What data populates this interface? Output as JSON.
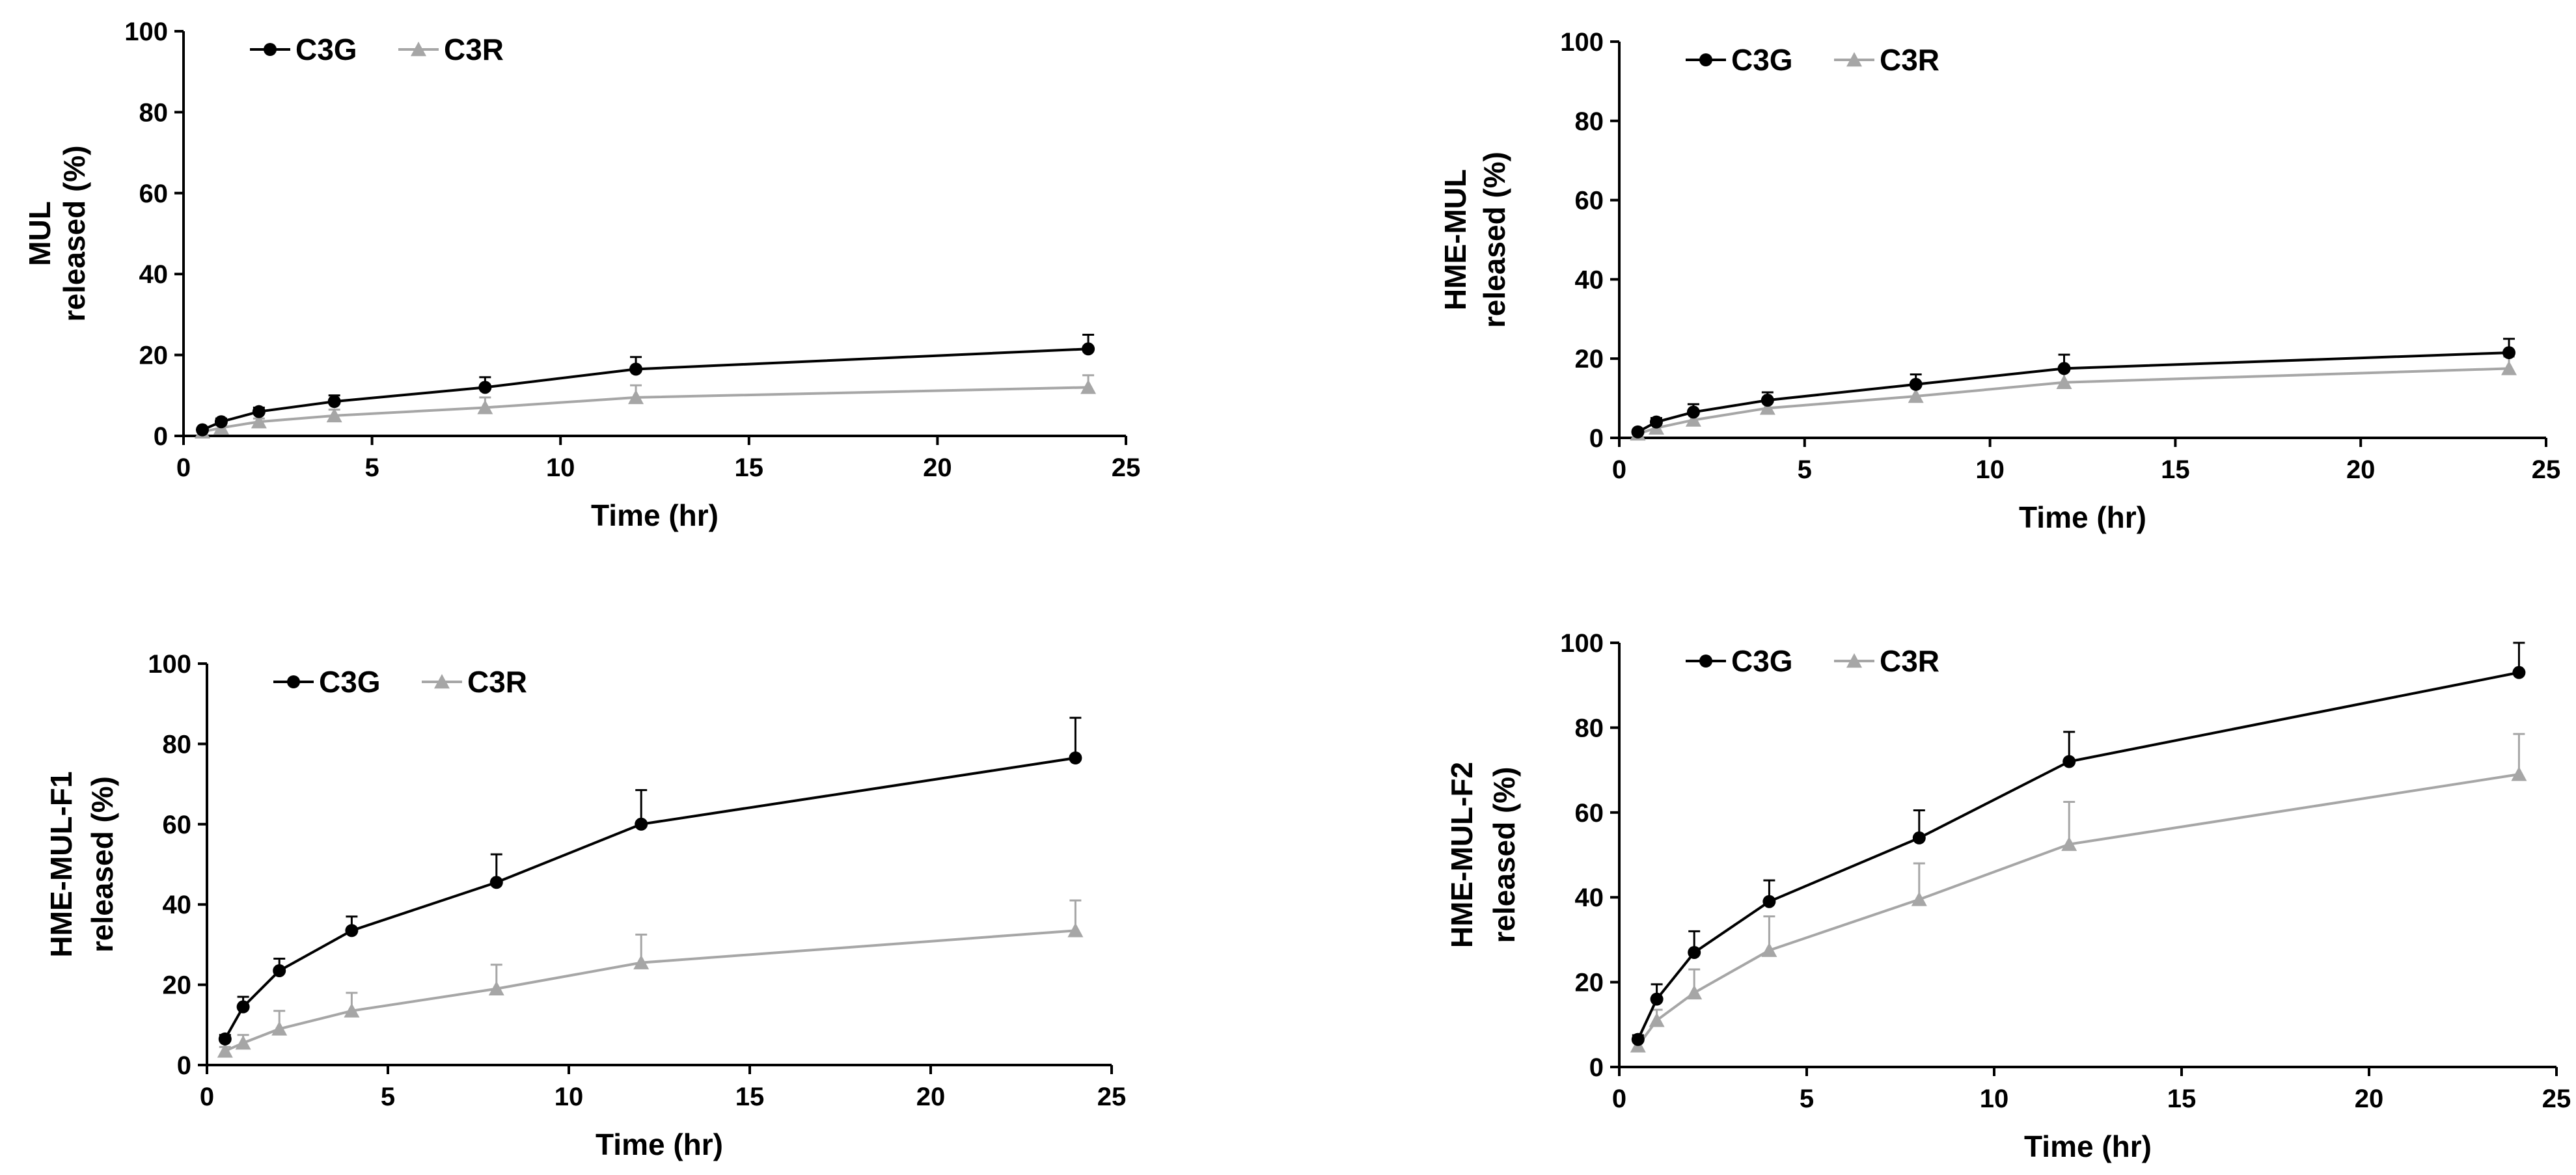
{
  "colors": {
    "C3G": "#000000",
    "C3R": "#a6a6a6",
    "axis": "#000000",
    "background": "#ffffff"
  },
  "chart_data": [
    {
      "type": "line",
      "panel": "top-left",
      "title": "",
      "xlabel": "Time (hr)",
      "ylabel_lines": [
        "MUL",
        "released (%)"
      ],
      "xlim": [
        0,
        25
      ],
      "ylim": [
        0,
        100
      ],
      "xticks": [
        0,
        5,
        10,
        15,
        20,
        25
      ],
      "yticks": [
        0,
        20,
        40,
        60,
        80,
        100
      ],
      "grid": false,
      "legend_position": "top-left",
      "series": [
        {
          "name": "C3G",
          "marker": "circle",
          "x": [
            0.5,
            1,
            2,
            4,
            8,
            12,
            24
          ],
          "y": [
            1.5,
            3.5,
            6,
            8.5,
            12,
            16.5,
            21.5
          ],
          "err": [
            0.5,
            0.8,
            1.0,
            1.5,
            2.5,
            3.0,
            3.5
          ]
        },
        {
          "name": "C3R",
          "marker": "triangle",
          "x": [
            0.5,
            1,
            2,
            4,
            8,
            12,
            24
          ],
          "y": [
            1,
            2,
            3.5,
            5,
            7,
            9.5,
            12
          ],
          "err": [
            0.4,
            0.6,
            0.8,
            1.5,
            2.5,
            3.0,
            3.0
          ]
        }
      ]
    },
    {
      "type": "line",
      "panel": "top-right",
      "title": "",
      "xlabel": "Time (hr)",
      "ylabel_lines": [
        "HME-MUL",
        "released  (%)"
      ],
      "xlim": [
        0,
        25
      ],
      "ylim": [
        0,
        100
      ],
      "xticks": [
        0,
        5,
        10,
        15,
        20,
        25
      ],
      "yticks": [
        0,
        20,
        40,
        60,
        80,
        100
      ],
      "grid": false,
      "legend_position": "top-left",
      "series": [
        {
          "name": "C3G",
          "marker": "circle",
          "x": [
            0.5,
            1,
            2,
            4,
            8,
            12,
            24
          ],
          "y": [
            1.5,
            4,
            6.5,
            9.5,
            13.5,
            17.5,
            21.5
          ],
          "err": [
            0.5,
            1.0,
            2.0,
            2.0,
            2.5,
            3.5,
            3.5
          ]
        },
        {
          "name": "C3R",
          "marker": "triangle",
          "x": [
            0.5,
            1,
            2,
            4,
            8,
            12,
            24
          ],
          "y": [
            1,
            2.5,
            4.5,
            7.5,
            10.5,
            14,
            17.5
          ],
          "err": [
            0.4,
            0.8,
            1.5,
            2.0,
            2.5,
            3.0,
            3.0
          ]
        }
      ]
    },
    {
      "type": "line",
      "panel": "bottom-left",
      "title": "",
      "xlabel": "Time (hr)",
      "ylabel_lines": [
        "HME-MUL-F1",
        "released (%)"
      ],
      "xlim": [
        0,
        25
      ],
      "ylim": [
        0,
        100
      ],
      "xticks": [
        0,
        5,
        10,
        15,
        20,
        25
      ],
      "yticks": [
        0,
        20,
        40,
        60,
        80,
        100
      ],
      "grid": false,
      "legend_position": "top-left",
      "series": [
        {
          "name": "C3G",
          "marker": "circle",
          "x": [
            0.5,
            1,
            2,
            4,
            8,
            12,
            24
          ],
          "y": [
            6.5,
            14.5,
            23.5,
            33.5,
            45.5,
            60,
            76.5
          ],
          "err": [
            1.0,
            2.5,
            3.0,
            3.5,
            7.0,
            8.5,
            10.0
          ]
        },
        {
          "name": "C3R",
          "marker": "triangle",
          "x": [
            0.5,
            1,
            2,
            4,
            8,
            12,
            24
          ],
          "y": [
            3.5,
            5.5,
            9,
            13.5,
            19,
            25.5,
            33.5
          ],
          "err": [
            1.0,
            2.0,
            4.5,
            4.5,
            6.0,
            7.0,
            7.5
          ]
        }
      ]
    },
    {
      "type": "line",
      "panel": "bottom-right",
      "title": "",
      "xlabel": "Time (hr)",
      "ylabel_lines": [
        "HME-MUL-F2",
        "released (%)"
      ],
      "xlim": [
        0,
        25
      ],
      "ylim": [
        0,
        100
      ],
      "xticks": [
        0,
        5,
        10,
        15,
        20,
        25
      ],
      "yticks": [
        0,
        20,
        40,
        60,
        80,
        100
      ],
      "grid": false,
      "legend_position": "top-left",
      "series": [
        {
          "name": "C3G",
          "marker": "circle",
          "x": [
            0.5,
            1,
            2,
            4,
            8,
            12,
            24
          ],
          "y": [
            6.5,
            16,
            27,
            39,
            54,
            72,
            93
          ],
          "err": [
            1.0,
            3.5,
            5.0,
            5.0,
            6.5,
            7.0,
            7.0
          ]
        },
        {
          "name": "C3R",
          "marker": "triangle",
          "x": [
            0.5,
            1,
            2,
            4,
            8,
            12,
            24
          ],
          "y": [
            5,
            11,
            17.5,
            27.5,
            39.5,
            52.5,
            69
          ],
          "err": [
            1.0,
            2.5,
            5.5,
            8.0,
            8.5,
            10.0,
            9.5
          ]
        }
      ]
    }
  ]
}
